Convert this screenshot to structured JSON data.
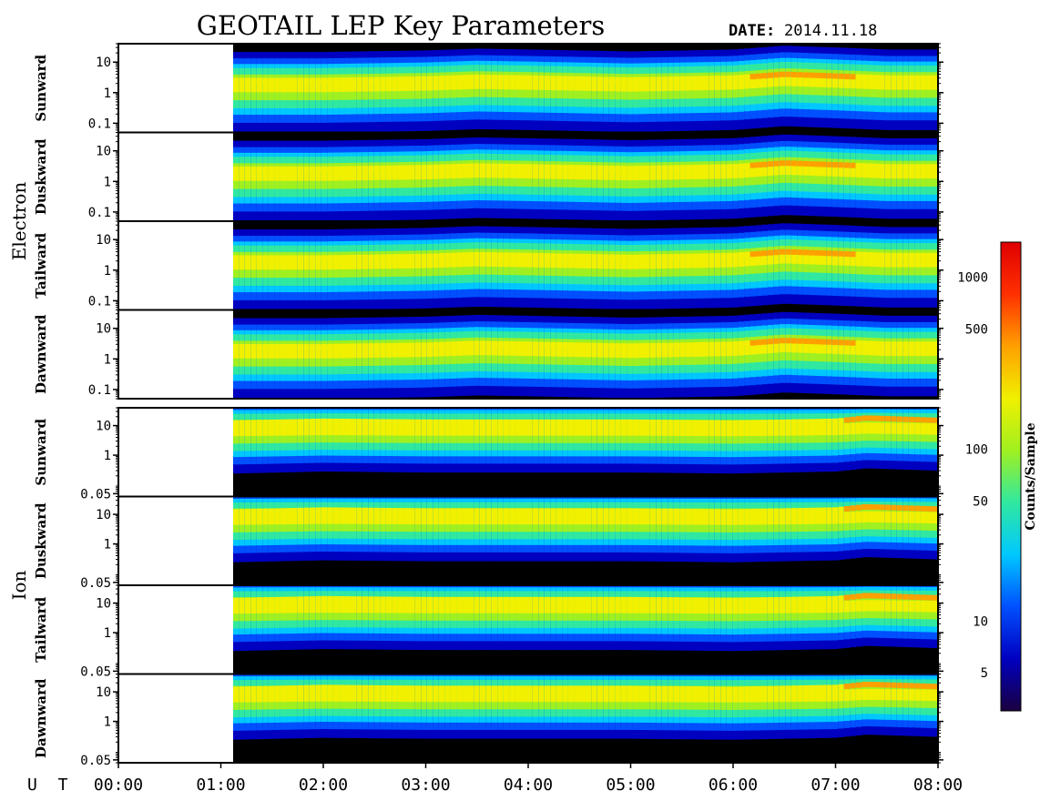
{
  "header": {
    "title": "GEOTAIL LEP Key Parameters",
    "date_label": "DATE:",
    "date_value": "2014.11.18"
  },
  "colors": {
    "spectrogram_scale": [
      "#1a0040",
      "#0000c0",
      "#0050ff",
      "#00c8ff",
      "#30e8a0",
      "#a0f020",
      "#f0f000",
      "#ffa000",
      "#ff3000",
      "#e00000"
    ],
    "fill_background": "#000000",
    "no_data": "#ffffff"
  },
  "chart_data": {
    "type": "heatmap",
    "x_axis": {
      "label": "U T",
      "ticks": [
        "00:00",
        "01:00",
        "02:00",
        "03:00",
        "04:00",
        "05:00",
        "06:00",
        "07:00",
        "08:00"
      ],
      "range_hours": [
        0,
        8
      ],
      "data_start_hour": 1.12
    },
    "groups": [
      {
        "name": "Electron",
        "energy_axis": {
          "ticks": [
            "10",
            "1",
            "0.1"
          ],
          "tick_values": [
            10,
            1,
            0.1
          ],
          "range": [
            0.05,
            40
          ],
          "scale": "log"
        },
        "panels": [
          {
            "direction": "Sunward"
          },
          {
            "direction": "Duskward"
          },
          {
            "direction": "Tailward"
          },
          {
            "direction": "Dawnward"
          }
        ],
        "peak_energy_trend": [
          [
            1.12,
            2.5
          ],
          [
            2,
            2.5
          ],
          [
            3,
            2.8
          ],
          [
            3.5,
            3.2
          ],
          [
            4,
            3
          ],
          [
            5,
            2.6
          ],
          [
            6,
            3
          ],
          [
            6.5,
            4
          ],
          [
            7,
            3.5
          ],
          [
            7.5,
            3
          ],
          [
            8,
            3
          ]
        ]
      },
      {
        "name": "Ion",
        "energy_axis": {
          "ticks": [
            "10",
            "1",
            "0.05"
          ],
          "tick_values": [
            10,
            1,
            0.05
          ],
          "range": [
            0.04,
            40
          ],
          "scale": "log"
        },
        "panels": [
          {
            "direction": "Sunward"
          },
          {
            "direction": "Duskward"
          },
          {
            "direction": "Tailward"
          },
          {
            "direction": "Dawnward"
          }
        ],
        "peak_energy_trend": [
          [
            1.12,
            12
          ],
          [
            2,
            14
          ],
          [
            3,
            13
          ],
          [
            4,
            13
          ],
          [
            5,
            13
          ],
          [
            6,
            12
          ],
          [
            7,
            14
          ],
          [
            7.3,
            18
          ],
          [
            8,
            15
          ]
        ]
      }
    ],
    "colorbar": {
      "label": "Counts/Sample",
      "ticks": [
        "1000",
        "500",
        "100",
        "50",
        "10",
        "5"
      ],
      "tick_values": [
        1000,
        500,
        100,
        50,
        10,
        5
      ],
      "range": [
        3,
        1600
      ],
      "scale": "log"
    }
  }
}
